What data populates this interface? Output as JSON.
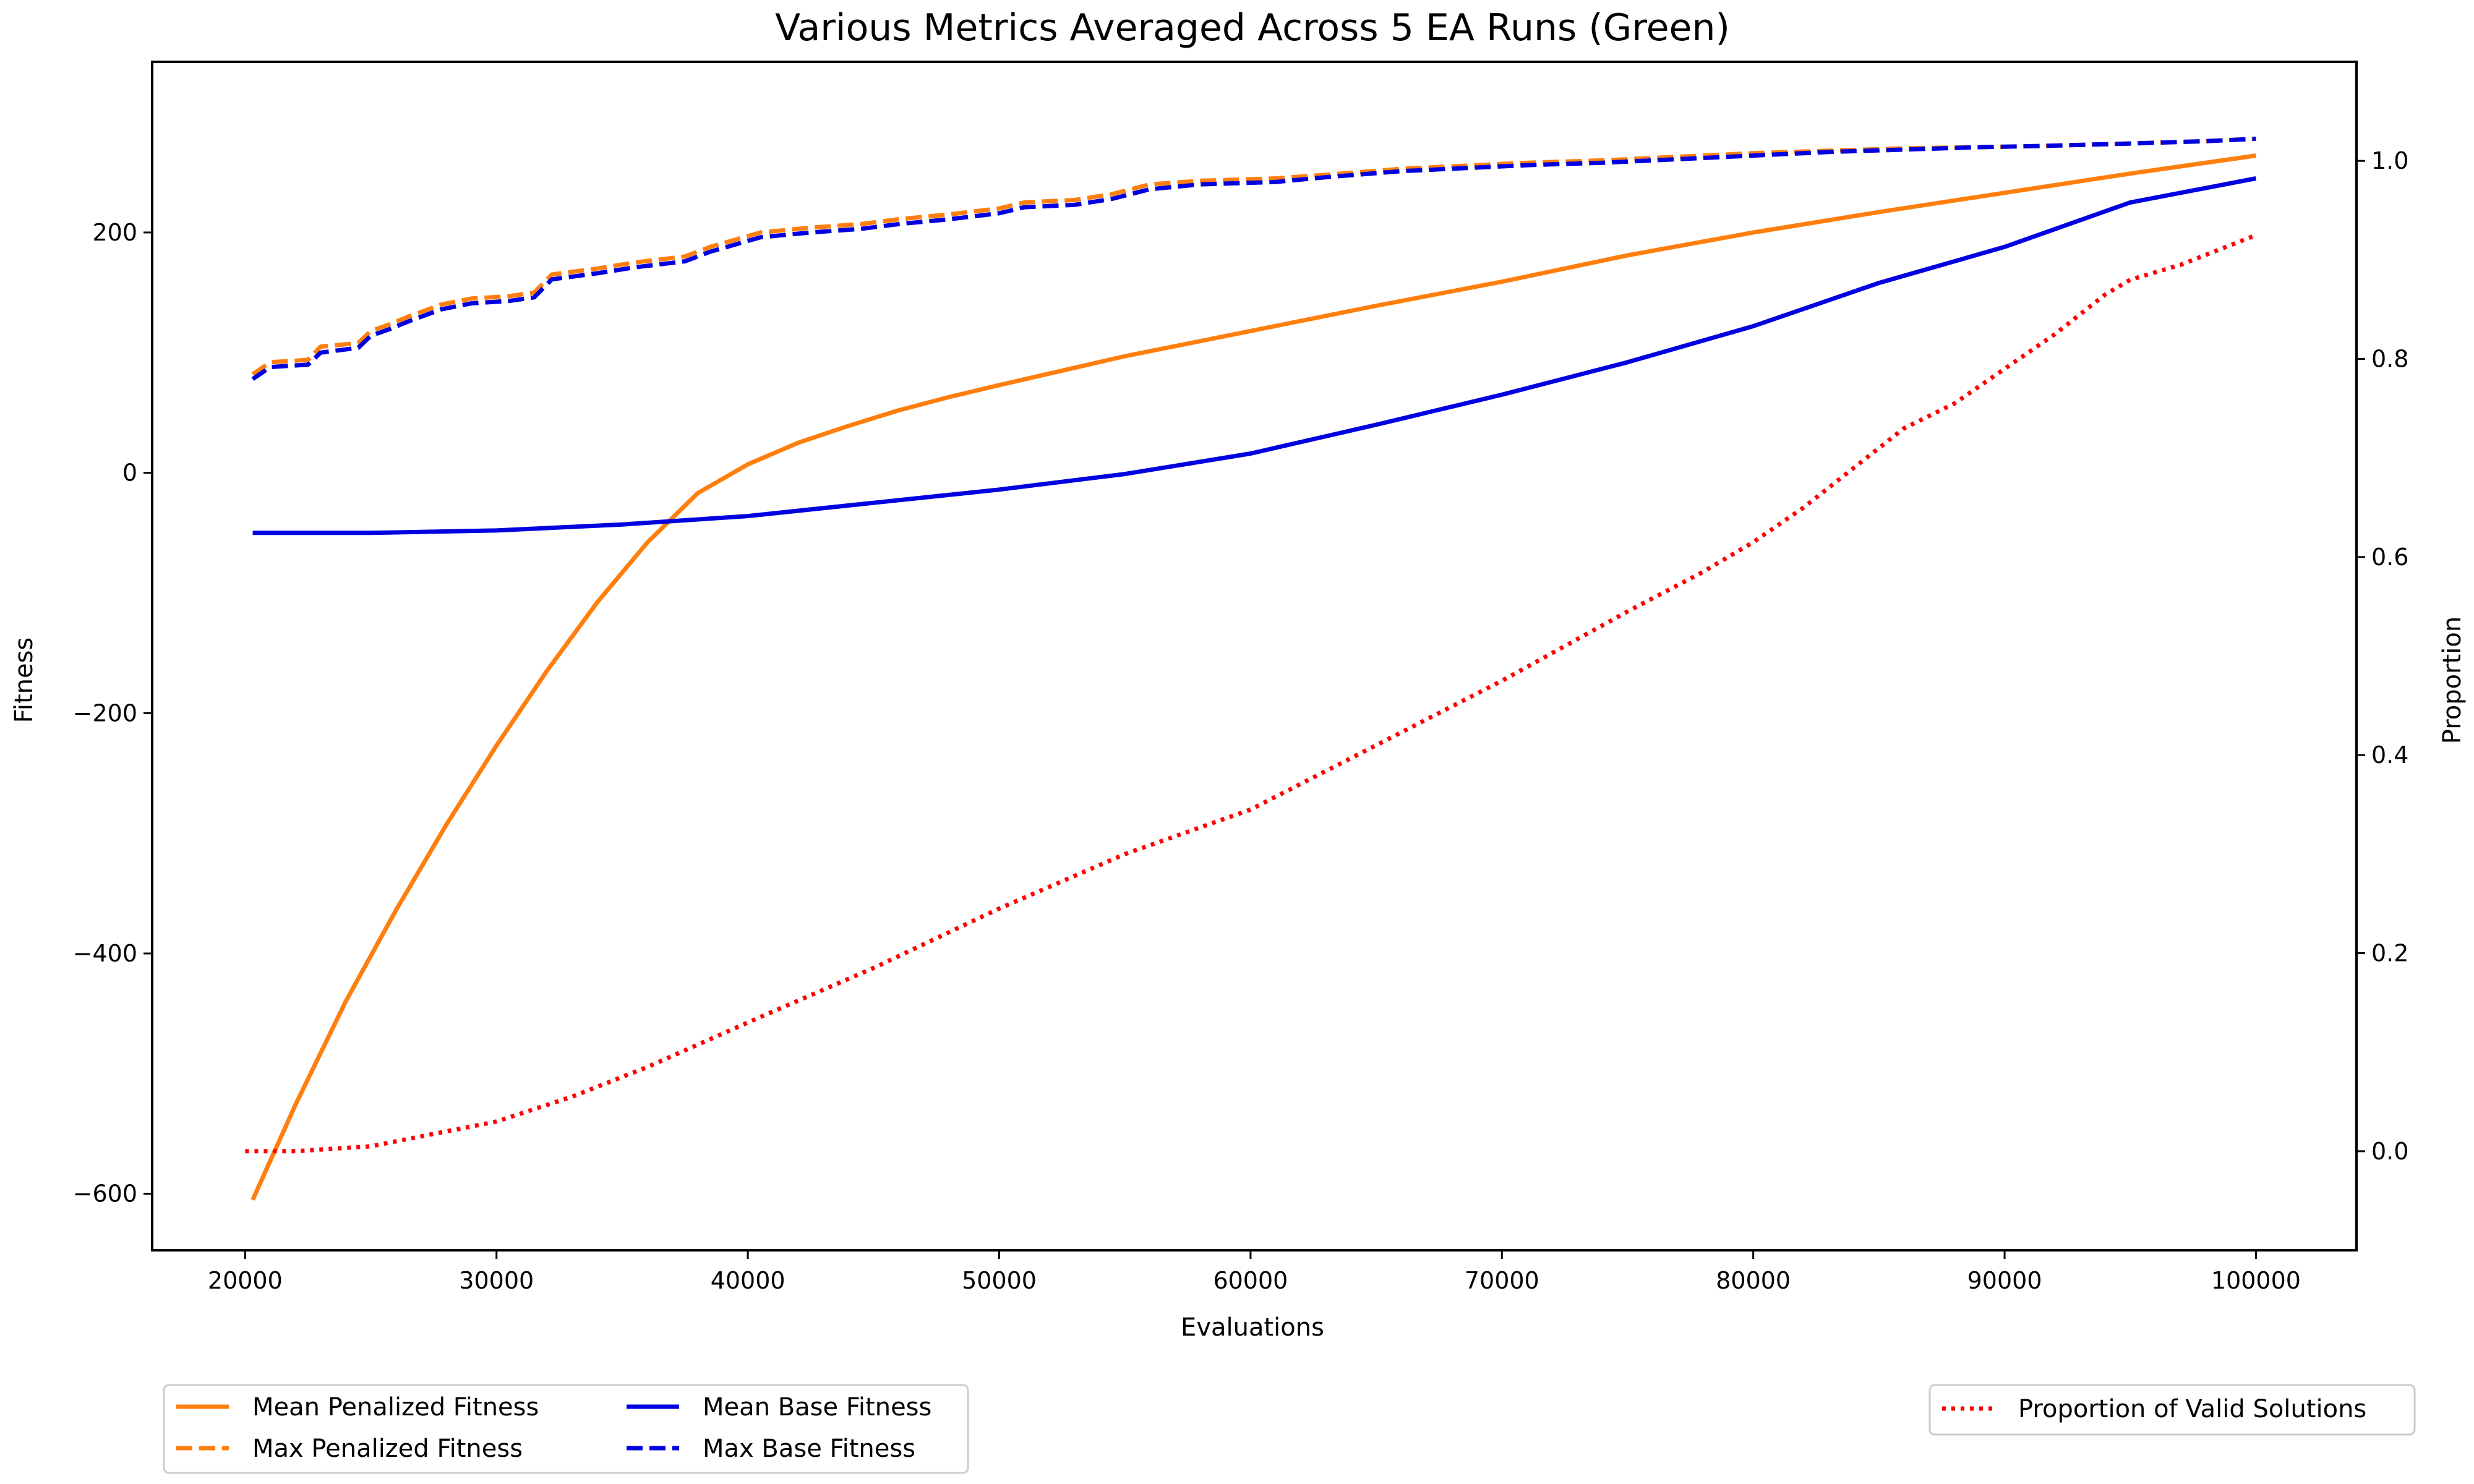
{
  "chart_data": {
    "type": "line",
    "title": "Various Metrics Averaged Across 5 EA Runs (Green)",
    "xlabel": "Evaluations",
    "ylabel_left": "Fitness",
    "ylabel_right": "Proportion",
    "xlim": [
      16300,
      104000
    ],
    "ylim_left": [
      -647,
      342
    ],
    "ylim_right": [
      -0.1,
      1.1
    ],
    "x_ticks": [
      20000,
      30000,
      40000,
      50000,
      60000,
      70000,
      80000,
      90000,
      100000
    ],
    "x_tick_labels": [
      "20000",
      "30000",
      "40000",
      "50000",
      "60000",
      "70000",
      "80000",
      "90000",
      "100000"
    ],
    "y_left_ticks": [
      -600,
      -400,
      -200,
      0,
      200
    ],
    "y_left_tick_labels": [
      "−600",
      "−400",
      "−200",
      "0",
      "200"
    ],
    "y_right_ticks": [
      0.0,
      0.2,
      0.4,
      0.6,
      0.8,
      1.0
    ],
    "y_right_tick_labels": [
      "0.0",
      "0.2",
      "0.4",
      "0.6",
      "0.8",
      "1.0"
    ],
    "grid": false,
    "series": [
      {
        "name": "Mean Penalized Fitness",
        "axis": "left",
        "color": "#ff7f0e",
        "style": "solid",
        "x": [
          20300,
          22000,
          24000,
          26000,
          28000,
          30000,
          32000,
          34000,
          36000,
          38000,
          40000,
          42000,
          44000,
          46000,
          48000,
          50000,
          55000,
          60000,
          65000,
          70000,
          75000,
          80000,
          85000,
          90000,
          95000,
          100000
        ],
        "values": [
          -605,
          -526,
          -440,
          -364,
          -293,
          -227,
          -165,
          -108,
          -58,
          -17,
          7,
          25,
          39,
          52,
          63,
          73,
          97,
          118,
          139,
          159,
          181,
          200,
          217,
          233,
          249,
          264
        ]
      },
      {
        "name": "Max Penalized Fitness",
        "axis": "left",
        "color": "#ff7f0e",
        "style": "dashed",
        "x": [
          20300,
          21000,
          22500,
          23000,
          24500,
          25000,
          25800,
          26500,
          27800,
          29000,
          30500,
          31500,
          32200,
          34000,
          35500,
          37500,
          38500,
          40500,
          42500,
          44500,
          46000,
          48000,
          50000,
          51000,
          53000,
          54500,
          56000,
          58000,
          61000,
          63000,
          66000,
          69000,
          71000,
          74000,
          76000,
          78000,
          80000,
          83000,
          86000,
          89000,
          91500,
          95000,
          98000,
          100000
        ],
        "values": [
          82,
          92,
          94,
          105,
          108,
          118,
          124,
          130,
          140,
          145,
          147,
          150,
          165,
          170,
          175,
          180,
          188,
          200,
          204,
          207,
          211,
          215,
          220,
          225,
          227,
          232,
          240,
          243,
          245,
          248,
          253,
          256,
          258,
          260,
          262,
          264,
          266,
          268,
          270,
          271,
          272,
          274,
          276,
          278
        ]
      },
      {
        "name": "Mean Base Fitness",
        "axis": "left",
        "color": "#0000e0",
        "style": "solid",
        "x": [
          20300,
          25000,
          30000,
          35000,
          40000,
          45000,
          50000,
          55000,
          60000,
          65000,
          70000,
          75000,
          80000,
          85000,
          90000,
          95000,
          100000
        ],
        "values": [
          -50,
          -50,
          -48,
          -43,
          -36,
          -25,
          -14,
          -1,
          16,
          40,
          65,
          92,
          122,
          158,
          188,
          225,
          245
        ]
      },
      {
        "name": "Max Base Fitness",
        "axis": "left",
        "color": "#0000e0",
        "style": "dashed",
        "x": [
          20300,
          21000,
          22500,
          23000,
          24500,
          25000,
          25800,
          26500,
          27800,
          29000,
          30500,
          31500,
          32200,
          34000,
          35500,
          37500,
          38500,
          40500,
          42500,
          44500,
          46000,
          48000,
          50000,
          51000,
          53000,
          54500,
          56000,
          58000,
          61000,
          63000,
          66000,
          69000,
          71000,
          74000,
          76000,
          78000,
          80000,
          83000,
          86000,
          89000,
          91500,
          95000,
          98000,
          100000
        ],
        "values": [
          78,
          88,
          90,
          100,
          104,
          114,
          120,
          126,
          136,
          141,
          143,
          146,
          161,
          166,
          171,
          176,
          184,
          196,
          200,
          203,
          207,
          211,
          216,
          221,
          223,
          228,
          236,
          240,
          242,
          246,
          251,
          254,
          256,
          258,
          260,
          262,
          264,
          267,
          269,
          271,
          272,
          274,
          276,
          278
        ]
      },
      {
        "name": "Proportion of Valid Solutions",
        "axis": "right",
        "color": "#ff0000",
        "style": "dotted",
        "x": [
          20000,
          22000,
          25000,
          28000,
          30000,
          33000,
          36000,
          40000,
          45000,
          50000,
          55000,
          60000,
          65000,
          70000,
          75000,
          78000,
          80000,
          82000,
          84000,
          86000,
          88000,
          90000,
          92000,
          94000,
          95000,
          97000,
          100000
        ],
        "values": [
          0.0,
          0.0,
          0.005,
          0.02,
          0.03,
          0.055,
          0.085,
          0.13,
          0.185,
          0.245,
          0.3,
          0.345,
          0.41,
          0.475,
          0.545,
          0.585,
          0.615,
          0.65,
          0.69,
          0.73,
          0.755,
          0.79,
          0.825,
          0.865,
          0.88,
          0.895,
          0.925
        ]
      }
    ]
  },
  "legend": {
    "left_placement": "lower-left, below plot",
    "right_placement": "lower-right, below plot",
    "mean_penalized": "Mean Penalized Fitness",
    "max_penalized": "Max Penalized Fitness",
    "mean_base": "Mean Base Fitness",
    "max_base": "Max Base Fitness",
    "valid": "Proportion of Valid Solutions"
  }
}
